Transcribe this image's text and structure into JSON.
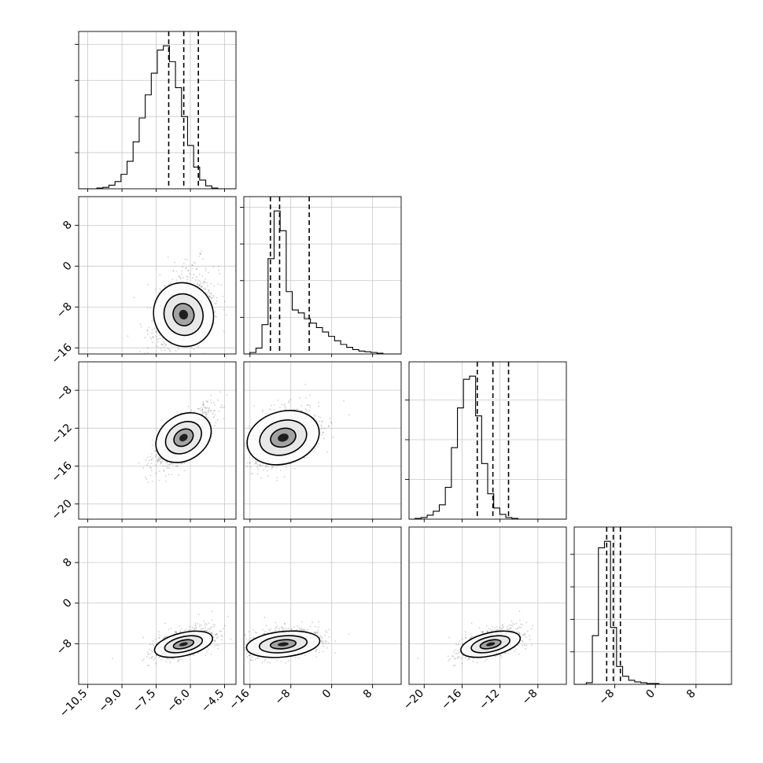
{
  "chart_data": {
    "type": "corner",
    "n_params": 4,
    "axis_ticks": [
      {
        "ticks": [
          -10.5,
          -9.0,
          -7.5,
          -6.0,
          -4.5
        ],
        "labels": [
          "−10.5",
          "−9.0",
          "−7.5",
          "−6.0",
          "−4.5"
        ],
        "range": [
          -10.9,
          -4.0
        ]
      },
      {
        "ticks": [
          -16,
          -8,
          0,
          8
        ],
        "labels": [
          "−16",
          "−8",
          "0",
          "8"
        ],
        "range": [
          -17.2,
          13.6
        ]
      },
      {
        "ticks": [
          -20,
          -16,
          -12,
          -8
        ],
        "labels": [
          "−20",
          "−16",
          "−12",
          "−8"
        ],
        "range": [
          -21.6,
          -5.0
        ]
      },
      {
        "ticks": [
          -8,
          0,
          8
        ],
        "labels": [
          "−8",
          "0",
          "8"
        ],
        "range": [
          -16.0,
          15.0
        ]
      }
    ],
    "marginals": [
      {
        "param": 0,
        "quantiles": [
          -6.95,
          -6.29,
          -5.65
        ],
        "bin_counts": [
          0,
          0,
          0,
          1,
          2,
          5,
          10,
          20,
          38,
          65,
          98,
          130,
          160,
          192,
          198,
          176,
          140,
          100,
          60,
          30,
          12,
          4,
          1,
          0,
          0,
          0
        ]
      },
      {
        "param": 1,
        "quantiles": [
          -12.0,
          -10.2,
          -4.4
        ],
        "bin_counts": [
          0,
          2,
          8,
          40,
          130,
          195,
          168,
          85,
          60,
          56,
          48,
          42,
          36,
          30,
          24,
          18,
          13,
          9,
          6,
          4,
          3,
          2,
          1,
          0,
          0,
          0
        ]
      },
      {
        "param": 2,
        "quantiles": [
          -14.4,
          -12.75,
          -11.1
        ],
        "bin_counts": [
          0,
          1,
          2,
          5,
          10,
          18,
          40,
          90,
          140,
          176,
          180,
          130,
          70,
          32,
          14,
          6,
          2,
          1,
          0,
          0,
          0,
          0,
          0,
          0,
          0,
          0
        ]
      },
      {
        "param": 3,
        "quantiles": [
          -9.6,
          -8.3,
          -6.9
        ],
        "bin_counts": [
          0,
          0,
          2,
          60,
          168,
          176,
          70,
          22,
          10,
          5,
          3,
          2,
          1,
          1,
          0,
          0,
          0,
          0,
          0,
          0,
          0,
          0,
          0,
          0,
          0,
          0
        ]
      }
    ],
    "joint_2d": [
      {
        "x_param": 0,
        "y_param": 1,
        "mean": [
          -6.3,
          -9.5
        ],
        "sd": [
          0.65,
          3.6
        ],
        "rho": 0.35,
        "skew_y": 3.5
      },
      {
        "x_param": 0,
        "y_param": 2,
        "mean": [
          -6.3,
          -13.0
        ],
        "sd": [
          0.65,
          1.6
        ],
        "rho": 0.75,
        "skew_y": 0
      },
      {
        "x_param": 1,
        "y_param": 2,
        "mean": [
          -9.5,
          -13.0
        ],
        "sd": [
          3.6,
          1.6
        ],
        "rho": 0.4,
        "skew_y": 0
      },
      {
        "x_param": 0,
        "y_param": 3,
        "mean": [
          -6.3,
          -8.1
        ],
        "sd": [
          0.65,
          1.4
        ],
        "rho": 0.55,
        "skew_y": 1.2
      },
      {
        "x_param": 1,
        "y_param": 3,
        "mean": [
          -9.5,
          -8.1
        ],
        "sd": [
          3.6,
          1.4
        ],
        "rho": 0.3,
        "skew_y": 1.2
      },
      {
        "x_param": 2,
        "y_param": 3,
        "mean": [
          -13.0,
          -8.1
        ],
        "sd": [
          1.6,
          1.4
        ],
        "rho": 0.55,
        "skew_y": 1.2
      }
    ],
    "grid": true,
    "title": "",
    "xlabel": "",
    "ylabel": ""
  }
}
